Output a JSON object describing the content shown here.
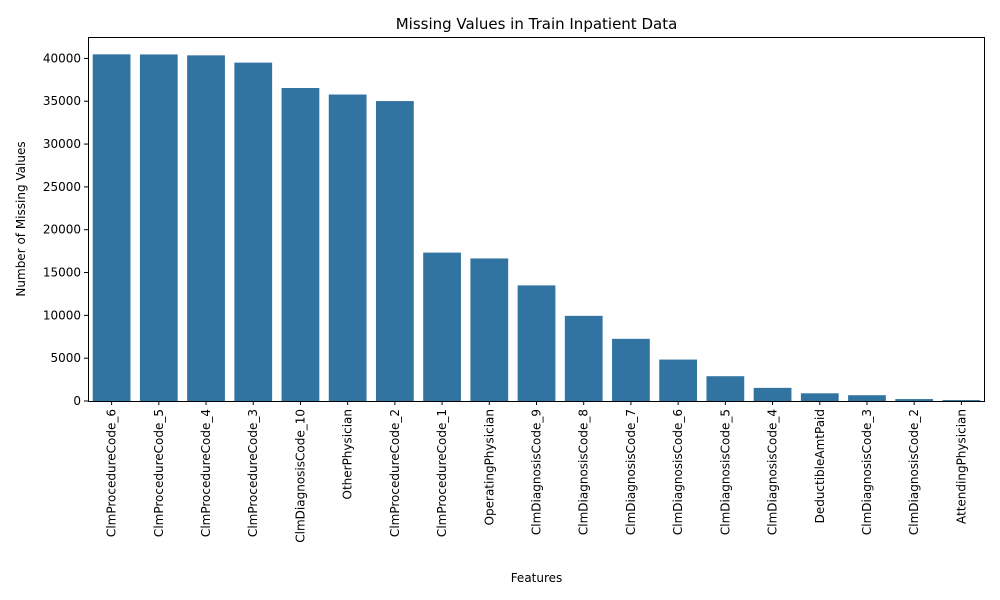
{
  "chart_data": {
    "type": "bar",
    "title": "Missing Values in Train Inpatient Data",
    "xlabel": "Features",
    "ylabel": "Number of Missing Values",
    "ylim": [
      0,
      42500
    ],
    "yticks": [
      0,
      5000,
      10000,
      15000,
      20000,
      25000,
      30000,
      35000,
      40000
    ],
    "bar_color": "#3274a1",
    "grid": false,
    "categories": [
      "ClmProcedureCode_6",
      "ClmProcedureCode_5",
      "ClmProcedureCode_4",
      "ClmProcedureCode_3",
      "ClmDiagnosisCode_10",
      "OtherPhysician",
      "ClmProcedureCode_2",
      "ClmProcedureCode_1",
      "OperatingPhysician",
      "ClmDiagnosisCode_9",
      "ClmDiagnosisCode_8",
      "ClmDiagnosisCode_7",
      "ClmDiagnosisCode_6",
      "ClmDiagnosisCode_5",
      "ClmDiagnosisCode_4",
      "DeductibleAmtPaid",
      "ClmDiagnosisCode_3",
      "ClmDiagnosisCode_2",
      "AttendingPhysician"
    ],
    "values": [
      40474,
      40465,
      40358,
      39509,
      36547,
      35784,
      35020,
      17326,
      16644,
      13497,
      9942,
      7258,
      4838,
      2894,
      1534,
      899,
      676,
      226,
      112
    ]
  }
}
